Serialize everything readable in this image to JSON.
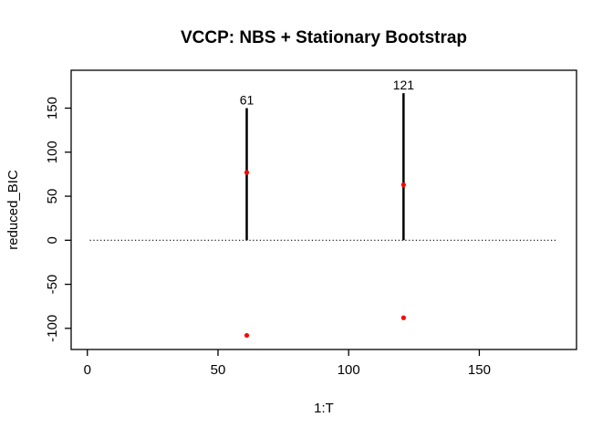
{
  "chart_data": {
    "type": "scatter",
    "title": "VCCP: NBS + Stationary Bootstrap",
    "xlabel": "1:T",
    "ylabel": "reduced_BIC",
    "xlim": [
      -6.2,
      187.2
    ],
    "ylim": [
      -124,
      193
    ],
    "x_ticks": [
      0,
      50,
      100,
      150
    ],
    "y_ticks": [
      -100,
      -50,
      0,
      50,
      100,
      150
    ],
    "grid": false,
    "legend": false,
    "background_color": "#ffffff",
    "line_color": "#000000",
    "point_color": "#ff0000",
    "zero_line": {
      "y": 0,
      "x_start": 1,
      "x_end": 180,
      "style": "dotted"
    },
    "change_points": [
      {
        "t": 61,
        "label": "61",
        "segment": [
          0,
          150
        ],
        "point_on_segment": 77,
        "lower_point": -108
      },
      {
        "t": 121,
        "label": "121",
        "segment": [
          0,
          167
        ],
        "point_on_segment": 63,
        "lower_point": -88
      }
    ]
  }
}
